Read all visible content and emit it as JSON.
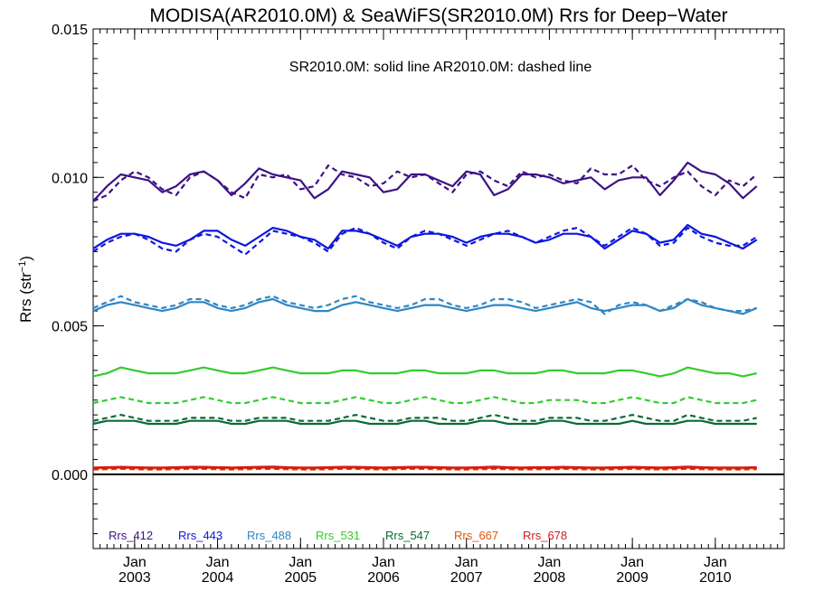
{
  "chart_data": {
    "type": "line",
    "title": "MODISA(AR2010.0M) & SeaWiFS(SR2010.0M)  Rrs for Deep−Water",
    "annotation": "SR2010.0M: solid line   AR2010.0M: dashed line",
    "ylabel": "Rrs (str",
    "ylabel_sup": "−1",
    "ylabel_close": ")",
    "ylim": [
      -0.0025,
      0.015
    ],
    "yticks": [
      "0.015",
      "0.010",
      "0.005",
      "0.000"
    ],
    "ytick_values": [
      0.015,
      0.01,
      0.005,
      0.0
    ],
    "xlim": [
      2002.5,
      2010.83
    ],
    "xticks": [
      {
        "month": "Jan",
        "year": "2003",
        "value": 2003
      },
      {
        "month": "Jan",
        "year": "2004",
        "value": 2004
      },
      {
        "month": "Jan",
        "year": "2005",
        "value": 2005
      },
      {
        "month": "Jan",
        "year": "2006",
        "value": 2006
      },
      {
        "month": "Jan",
        "year": "2007",
        "value": 2007
      },
      {
        "month": "Jan",
        "year": "2008",
        "value": 2008
      },
      {
        "month": "Jan",
        "year": "2009",
        "value": 2009
      },
      {
        "month": "Jan",
        "year": "2010",
        "value": 2010
      }
    ],
    "zero_line": 0.0,
    "legend_placement": "bottom-left",
    "series": [
      {
        "name": "Rrs_412",
        "color": "#3d1285",
        "solid": [
          0.0092,
          0.0097,
          0.0101,
          0.01,
          0.0099,
          0.0095,
          0.0097,
          0.0101,
          0.0102,
          0.0099,
          0.0094,
          0.0098,
          0.0103,
          0.0101,
          0.01,
          0.0099,
          0.0093,
          0.0096,
          0.0102,
          0.0101,
          0.01,
          0.0095,
          0.0096,
          0.0101,
          0.0101,
          0.0099,
          0.0097,
          0.0102,
          0.0101,
          0.0094,
          0.0096,
          0.0101,
          0.0101,
          0.01,
          0.0098,
          0.0099,
          0.01,
          0.0096,
          0.0099,
          0.01,
          0.01,
          0.0094,
          0.0099,
          0.0105,
          0.0102,
          0.0101,
          0.0098,
          0.0093,
          0.0097
        ],
        "dashed": [
          0.0092,
          0.0094,
          0.0099,
          0.0102,
          0.01,
          0.0096,
          0.0094,
          0.01,
          0.0102,
          0.0099,
          0.0095,
          0.0093,
          0.0101,
          0.01,
          0.0101,
          0.0096,
          0.0097,
          0.0104,
          0.0101,
          0.01,
          0.0097,
          0.0098,
          0.0102,
          0.01,
          0.0101,
          0.0098,
          0.0095,
          0.0101,
          0.0102,
          0.0099,
          0.0097,
          0.0102,
          0.01,
          0.0101,
          0.0099,
          0.0098,
          0.0103,
          0.0101,
          0.0101,
          0.0104,
          0.0099,
          0.0097,
          0.01,
          0.0102,
          0.0097,
          0.0094,
          0.0099,
          0.0097,
          0.0101
        ]
      },
      {
        "name": "Rrs_443",
        "color": "#0d17e0",
        "solid": [
          0.0076,
          0.0079,
          0.0081,
          0.0081,
          0.008,
          0.0078,
          0.0077,
          0.0079,
          0.0082,
          0.0082,
          0.0079,
          0.0077,
          0.008,
          0.0083,
          0.0082,
          0.008,
          0.0079,
          0.0076,
          0.0082,
          0.0082,
          0.0081,
          0.0079,
          0.0077,
          0.008,
          0.0081,
          0.0081,
          0.008,
          0.0078,
          0.008,
          0.0081,
          0.0081,
          0.008,
          0.0078,
          0.0079,
          0.0081,
          0.0081,
          0.008,
          0.0076,
          0.0079,
          0.0082,
          0.0081,
          0.0078,
          0.0079,
          0.0084,
          0.0081,
          0.008,
          0.0078,
          0.0076,
          0.0079
        ],
        "dashed": [
          0.0075,
          0.0078,
          0.008,
          0.0081,
          0.0079,
          0.0076,
          0.0075,
          0.0079,
          0.0081,
          0.008,
          0.0077,
          0.0074,
          0.0078,
          0.0082,
          0.0081,
          0.008,
          0.0078,
          0.0075,
          0.0081,
          0.0083,
          0.0081,
          0.0078,
          0.0076,
          0.008,
          0.0082,
          0.0081,
          0.0079,
          0.0077,
          0.0079,
          0.0081,
          0.0082,
          0.008,
          0.0078,
          0.008,
          0.0082,
          0.0083,
          0.008,
          0.0077,
          0.008,
          0.0083,
          0.0081,
          0.0077,
          0.0078,
          0.0083,
          0.008,
          0.0078,
          0.0077,
          0.0077,
          0.008
        ]
      },
      {
        "name": "Rrs_488",
        "color": "#2f86c4",
        "solid": [
          0.0055,
          0.0057,
          0.0058,
          0.0057,
          0.0056,
          0.0055,
          0.0056,
          0.0058,
          0.0058,
          0.0056,
          0.0055,
          0.0056,
          0.0058,
          0.0059,
          0.0057,
          0.0056,
          0.0055,
          0.0055,
          0.0057,
          0.0058,
          0.0057,
          0.0056,
          0.0055,
          0.0056,
          0.0057,
          0.0057,
          0.0056,
          0.0055,
          0.0056,
          0.0057,
          0.0057,
          0.0056,
          0.0055,
          0.0056,
          0.0057,
          0.0058,
          0.0056,
          0.0055,
          0.0056,
          0.0057,
          0.0057,
          0.0055,
          0.0056,
          0.0059,
          0.0057,
          0.0056,
          0.0055,
          0.0054,
          0.0056
        ],
        "dashed": [
          0.0056,
          0.0058,
          0.006,
          0.0058,
          0.0057,
          0.0056,
          0.0057,
          0.0059,
          0.0059,
          0.0057,
          0.0056,
          0.0057,
          0.0059,
          0.006,
          0.0058,
          0.0057,
          0.0056,
          0.0057,
          0.0059,
          0.006,
          0.0058,
          0.0057,
          0.0056,
          0.0057,
          0.0059,
          0.0059,
          0.0057,
          0.0056,
          0.0057,
          0.0059,
          0.0059,
          0.0058,
          0.0056,
          0.0057,
          0.0058,
          0.0059,
          0.0058,
          0.0054,
          0.0057,
          0.0058,
          0.0057,
          0.0055,
          0.0057,
          0.0059,
          0.0058,
          0.0056,
          0.0055,
          0.0055,
          0.0056
        ]
      },
      {
        "name": "Rrs_531",
        "color": "#33cc2e",
        "solid": [
          0.0033,
          0.0034,
          0.0036,
          0.0035,
          0.0034,
          0.0034,
          0.0034,
          0.0035,
          0.0036,
          0.0035,
          0.0034,
          0.0034,
          0.0035,
          0.0036,
          0.0035,
          0.0034,
          0.0034,
          0.0034,
          0.0035,
          0.0035,
          0.0034,
          0.0034,
          0.0034,
          0.0035,
          0.0035,
          0.0034,
          0.0034,
          0.0034,
          0.0035,
          0.0035,
          0.0034,
          0.0034,
          0.0034,
          0.0035,
          0.0035,
          0.0034,
          0.0034,
          0.0034,
          0.0035,
          0.0035,
          0.0034,
          0.0033,
          0.0034,
          0.0036,
          0.0035,
          0.0034,
          0.0034,
          0.0033,
          0.0034
        ],
        "dashed": [
          0.0024,
          0.0025,
          0.0026,
          0.0025,
          0.0024,
          0.0024,
          0.0024,
          0.0025,
          0.0026,
          0.0025,
          0.0024,
          0.0024,
          0.0025,
          0.0026,
          0.0025,
          0.0024,
          0.0024,
          0.0024,
          0.0025,
          0.0026,
          0.0025,
          0.0024,
          0.0024,
          0.0025,
          0.0026,
          0.0025,
          0.0024,
          0.0024,
          0.0025,
          0.0026,
          0.0025,
          0.0024,
          0.0024,
          0.0025,
          0.0025,
          0.0025,
          0.0024,
          0.0024,
          0.0025,
          0.0026,
          0.0025,
          0.0024,
          0.0024,
          0.0026,
          0.0025,
          0.0024,
          0.0024,
          0.0024,
          0.0025
        ]
      },
      {
        "name": "Rrs_547",
        "color": "#0a6b33",
        "solid": [
          0.0017,
          0.0018,
          0.0018,
          0.0018,
          0.0017,
          0.0017,
          0.0017,
          0.0018,
          0.0018,
          0.0018,
          0.0017,
          0.0017,
          0.0018,
          0.0018,
          0.0018,
          0.0017,
          0.0017,
          0.0017,
          0.0018,
          0.0018,
          0.0017,
          0.0017,
          0.0017,
          0.0018,
          0.0018,
          0.0017,
          0.0017,
          0.0017,
          0.0018,
          0.0018,
          0.0017,
          0.0017,
          0.0017,
          0.0018,
          0.0018,
          0.0017,
          0.0017,
          0.0017,
          0.0017,
          0.0018,
          0.0017,
          0.0017,
          0.0017,
          0.0018,
          0.0018,
          0.0017,
          0.0017,
          0.0017,
          0.0017
        ],
        "dashed": [
          0.0018,
          0.0019,
          0.002,
          0.0019,
          0.0018,
          0.0018,
          0.0018,
          0.0019,
          0.0019,
          0.0019,
          0.0018,
          0.0018,
          0.0019,
          0.0019,
          0.0019,
          0.0018,
          0.0018,
          0.0018,
          0.0019,
          0.002,
          0.0019,
          0.0018,
          0.0018,
          0.0019,
          0.0019,
          0.0019,
          0.0018,
          0.0018,
          0.0019,
          0.002,
          0.0019,
          0.0018,
          0.0018,
          0.0019,
          0.0019,
          0.0019,
          0.0018,
          0.0018,
          0.0019,
          0.002,
          0.0019,
          0.0018,
          0.0018,
          0.002,
          0.0019,
          0.0018,
          0.0018,
          0.0018,
          0.0019
        ]
      },
      {
        "name": "Rrs_667",
        "color": "#e0560b",
        "solid": [
          0.0002,
          0.00021,
          0.00022,
          0.00021,
          0.0002,
          0.0002,
          0.00021,
          0.00022,
          0.00022,
          0.00021,
          0.0002,
          0.00021,
          0.00022,
          0.00022,
          0.00021,
          0.0002,
          0.0002,
          0.00021,
          0.00022,
          0.00022,
          0.00021,
          0.0002,
          0.00021,
          0.00022,
          0.00022,
          0.00021,
          0.0002,
          0.0002,
          0.00021,
          0.00022,
          0.00021,
          0.0002,
          0.00021,
          0.00021,
          0.00022,
          0.00021,
          0.0002,
          0.0002,
          0.00021,
          0.00022,
          0.00021,
          0.0002,
          0.00021,
          0.00022,
          0.00021,
          0.0002,
          0.0002,
          0.0002,
          0.00021
        ],
        "dashed": [
          0.00016,
          0.00017,
          0.00018,
          0.00017,
          0.00016,
          0.00016,
          0.00017,
          0.00018,
          0.00018,
          0.00017,
          0.00016,
          0.00017,
          0.00018,
          0.00018,
          0.00017,
          0.00016,
          0.00016,
          0.00017,
          0.00018,
          0.00018,
          0.00017,
          0.00016,
          0.00017,
          0.00018,
          0.00018,
          0.00017,
          0.00016,
          0.00016,
          0.00017,
          0.00018,
          0.00017,
          0.00016,
          0.00017,
          0.00017,
          0.00018,
          0.00017,
          0.00016,
          0.00016,
          0.00017,
          0.00018,
          0.00017,
          0.00016,
          0.00017,
          0.00018,
          0.00017,
          0.00016,
          0.00016,
          0.00016,
          0.00017
        ]
      },
      {
        "name": "Rrs_678",
        "color": "#d41a1a",
        "solid": [
          0.00023,
          0.00024,
          0.00025,
          0.00024,
          0.00023,
          0.00023,
          0.00024,
          0.00025,
          0.00025,
          0.00024,
          0.00023,
          0.00024,
          0.00025,
          0.00026,
          0.00024,
          0.00023,
          0.00023,
          0.00024,
          0.00025,
          0.00025,
          0.00024,
          0.00023,
          0.00024,
          0.00025,
          0.00025,
          0.00024,
          0.00023,
          0.00023,
          0.00024,
          0.00026,
          0.00024,
          0.00023,
          0.00024,
          0.00024,
          0.00025,
          0.00024,
          0.00023,
          0.00023,
          0.00024,
          0.00025,
          0.00024,
          0.00023,
          0.00024,
          0.00026,
          0.00024,
          0.00023,
          0.00023,
          0.00023,
          0.00024
        ],
        "dashed": [
          0.00019,
          0.0002,
          0.00021,
          0.0002,
          0.00019,
          0.00019,
          0.0002,
          0.00021,
          0.00021,
          0.0002,
          0.00019,
          0.0002,
          0.00021,
          0.00021,
          0.0002,
          0.00019,
          0.00019,
          0.0002,
          0.00021,
          0.00021,
          0.0002,
          0.00019,
          0.0002,
          0.00021,
          0.00021,
          0.0002,
          0.00019,
          0.00019,
          0.0002,
          0.00021,
          0.0002,
          0.00019,
          0.0002,
          0.0002,
          0.00021,
          0.0002,
          0.00019,
          0.00019,
          0.0002,
          0.00021,
          0.0002,
          0.00019,
          0.0002,
          0.00021,
          0.0002,
          0.00019,
          0.00019,
          0.00019,
          0.0002
        ]
      }
    ],
    "x_start": 2002.5,
    "x_step": 0.1666667
  }
}
